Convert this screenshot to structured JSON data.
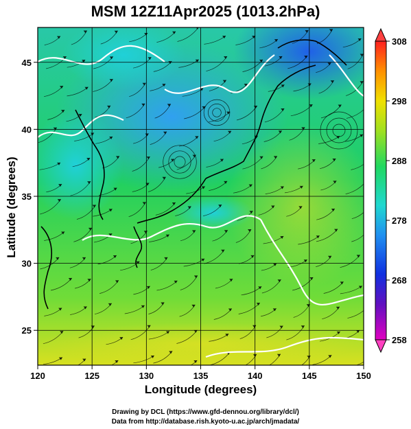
{
  "title": "MSM 12Z11Apr2025 (1013.2hPa)",
  "map_data": {
    "x_axis": {
      "label": "Longitude (degrees)",
      "min": 120,
      "max": 150,
      "ticks": [
        120,
        125,
        130,
        135,
        140,
        145,
        150
      ]
    },
    "y_axis": {
      "label": "Latitude  (degrees)",
      "min": 22.4,
      "max": 47.6,
      "ticks": [
        25,
        30,
        35,
        40,
        45
      ]
    },
    "colorbar": {
      "min": 258,
      "max": 308,
      "ticks": [
        258,
        268,
        278,
        288,
        298,
        308
      ]
    },
    "grid": true
  },
  "credits": {
    "line1": "Drawing by DCL (https://www.gfd-dennou.org/library/dcl/)",
    "line2": "Data from http://database.rish.kyoto-u.ac.jp/arch/jmadata/"
  },
  "colors": {
    "cold": "#2a78f0",
    "cool": "#22c0e0",
    "mid": "#18d860",
    "warm": "#a8e020",
    "hot": "#ffd000",
    "contour": "#ffffff"
  }
}
